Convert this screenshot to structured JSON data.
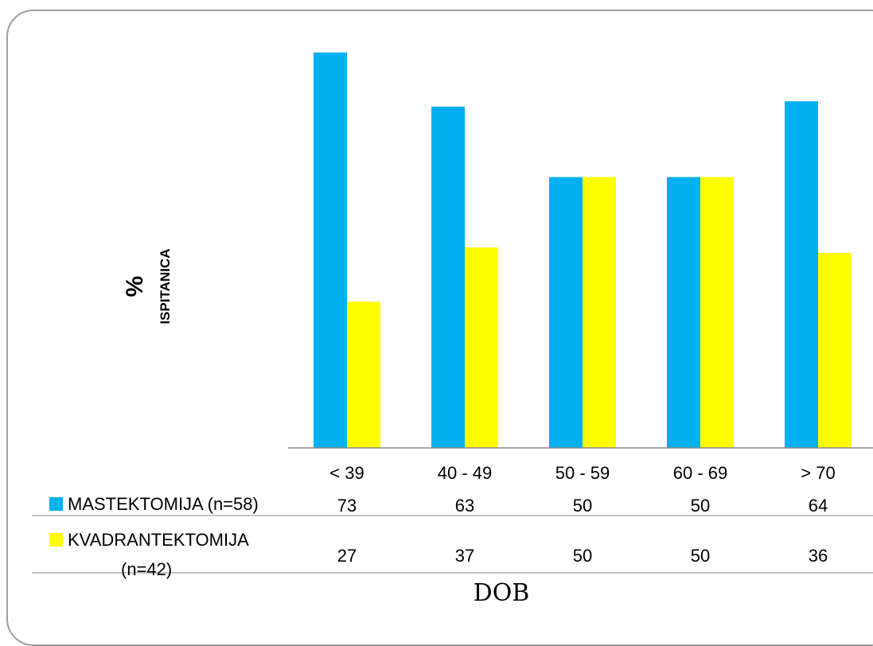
{
  "chart_data": {
    "type": "bar",
    "categories": [
      "< 39",
      "40 - 49",
      "50 - 59",
      "60 - 69",
      "> 70"
    ],
    "series": [
      {
        "name": "MASTEKTOMIJA (n=58)",
        "values": [
          73,
          63,
          50,
          50,
          64
        ],
        "color": "#00b0f0"
      },
      {
        "name_line1": "KVADRANTEKTOMIJA",
        "name_line2": "(n=42)",
        "values": [
          27,
          37,
          50,
          50,
          36
        ],
        "color": "#ffff00"
      }
    ],
    "ylabel_symbol": "%",
    "ylabel": "ISPITANICA",
    "xlabel": "DOB",
    "ylim": [
      0,
      73
    ],
    "gridlines": false,
    "legend": "data-table"
  },
  "table": {
    "row1": [
      "73",
      "63",
      "50",
      "50",
      "64"
    ],
    "row2": [
      "27",
      "37",
      "50",
      "50",
      "36"
    ]
  }
}
